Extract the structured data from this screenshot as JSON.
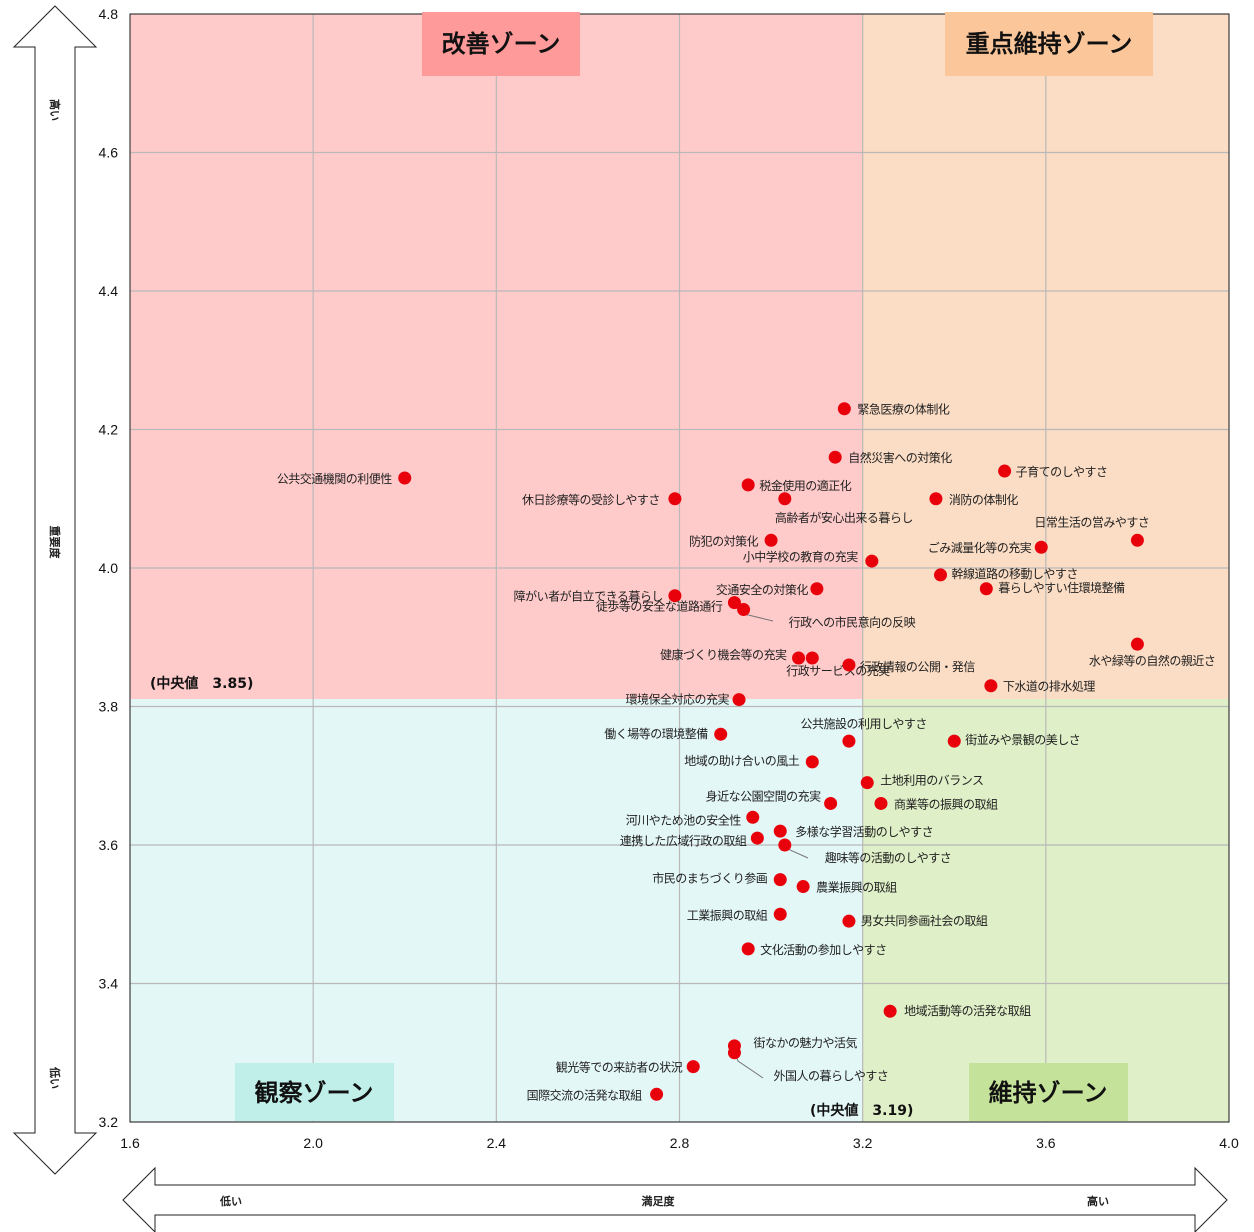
{
  "chart_data": {
    "type": "scatter",
    "xlim": [
      1.6,
      4.0
    ],
    "ylim": [
      3.2,
      4.8
    ],
    "x_ticks": [
      "1.6",
      "2.0",
      "2.4",
      "2.8",
      "3.2",
      "3.6",
      "4.0"
    ],
    "y_ticks": [
      "3.2",
      "3.4",
      "3.6",
      "3.8",
      "4.0",
      "4.2",
      "4.4",
      "4.6",
      "4.8"
    ],
    "grid": true,
    "x_median": 3.19,
    "y_median": 3.85,
    "x_median_label": "(中央値　3.19)",
    "y_median_label": "(中央値　3.85)",
    "xaxis": {
      "low": "低い",
      "label": "満足度",
      "high": "高い"
    },
    "yaxis": {
      "high": "高い",
      "label": "重要度",
      "low": "低い"
    },
    "zones": {
      "top_left": {
        "label": "改善ゾーン",
        "fill": "#ffcaca",
        "label_bg": "#ff9a9a"
      },
      "top_right": {
        "label": "重点維持ゾーン",
        "fill": "#fbdcc4",
        "label_bg": "#fbc79a"
      },
      "bottom_left": {
        "label": "観察ゾーン",
        "fill": "#e3f7f6",
        "label_bg": "#c0efea"
      },
      "bottom_right": {
        "label": "維持ゾーン",
        "fill": "#dfefc7",
        "label_bg": "#c4e29a"
      }
    },
    "point_color": "#e8000b",
    "points": [
      {
        "label": "緊急医療の体制化",
        "x": 3.16,
        "y": 4.23
      },
      {
        "label": "自然災害への対策化",
        "x": 3.14,
        "y": 4.16
      },
      {
        "label": "子育てのしやすさ",
        "x": 3.51,
        "y": 4.14
      },
      {
        "label": "公共交通機関の利便性",
        "x": 2.2,
        "y": 4.13
      },
      {
        "label": "税金使用の適正化",
        "x": 2.95,
        "y": 4.12
      },
      {
        "label": "休日診療等の受診しやすさ",
        "x": 2.79,
        "y": 4.1
      },
      {
        "label": "高齢者が安心出来る暮らし",
        "x": 3.03,
        "y": 4.1
      },
      {
        "label": "消防の体制化",
        "x": 3.36,
        "y": 4.1
      },
      {
        "label": "日常生活の営みやすさ",
        "x": 3.8,
        "y": 4.04
      },
      {
        "label": "防犯の対策化",
        "x": 3.0,
        "y": 4.04
      },
      {
        "label": "ごみ減量化等の充実",
        "x": 3.59,
        "y": 4.03
      },
      {
        "label": "小中学校の教育の充実",
        "x": 3.22,
        "y": 4.01
      },
      {
        "label": "幹線道路の移動しやすさ",
        "x": 3.37,
        "y": 3.99
      },
      {
        "label": "交通安全の対策化",
        "x": 3.1,
        "y": 3.97
      },
      {
        "label": "障がい者が自立できる暮らし",
        "x": 2.79,
        "y": 3.96
      },
      {
        "label": "暮らしやすい住環境整備",
        "x": 3.47,
        "y": 3.97
      },
      {
        "label": "徒歩等の安全な道路通行",
        "x": 2.92,
        "y": 3.95
      },
      {
        "label": "行政への市民意向の反映",
        "x": 2.94,
        "y": 3.94
      },
      {
        "label": "水や緑等の自然の親近さ",
        "x": 3.8,
        "y": 3.89
      },
      {
        "label": "健康づくり機会等の充実",
        "x": 3.06,
        "y": 3.87
      },
      {
        "label": "行政サービスの充実",
        "x": 3.09,
        "y": 3.87
      },
      {
        "label": "行政情報の公開・発信",
        "x": 3.17,
        "y": 3.86
      },
      {
        "label": "下水道の排水処理",
        "x": 3.48,
        "y": 3.83
      },
      {
        "label": "環境保全対応の充実",
        "x": 2.93,
        "y": 3.81
      },
      {
        "label": "働く場等の環境整備",
        "x": 2.89,
        "y": 3.76
      },
      {
        "label": "公共施設の利用しやすさ",
        "x": 3.17,
        "y": 3.75
      },
      {
        "label": "街並みや景観の美しさ",
        "x": 3.4,
        "y": 3.75
      },
      {
        "label": "地域の助け合いの風土",
        "x": 3.09,
        "y": 3.72
      },
      {
        "label": "土地利用のバランス",
        "x": 3.21,
        "y": 3.69
      },
      {
        "label": "身近な公園空間の充実",
        "x": 3.13,
        "y": 3.66
      },
      {
        "label": "商業等の振興の取組",
        "x": 3.24,
        "y": 3.66
      },
      {
        "label": "河川やため池の安全性",
        "x": 2.96,
        "y": 3.64
      },
      {
        "label": "多様な学習活動のしやすさ",
        "x": 3.02,
        "y": 3.62
      },
      {
        "label": "連携した広域行政の取組",
        "x": 2.97,
        "y": 3.61
      },
      {
        "label": "趣味等の活動のしやすさ",
        "x": 3.03,
        "y": 3.6
      },
      {
        "label": "市民のまちづくり参画",
        "x": 3.02,
        "y": 3.55
      },
      {
        "label": "農業振興の取組",
        "x": 3.07,
        "y": 3.54
      },
      {
        "label": "工業振興の取組",
        "x": 3.02,
        "y": 3.5
      },
      {
        "label": "男女共同参画社会の取組",
        "x": 3.17,
        "y": 3.49
      },
      {
        "label": "文化活動の参加しやすさ",
        "x": 2.95,
        "y": 3.45
      },
      {
        "label": "地域活動等の活発な取組",
        "x": 3.26,
        "y": 3.36
      },
      {
        "label": "街なかの魅力や活気",
        "x": 2.92,
        "y": 3.31
      },
      {
        "label": "外国人の暮らしやすさ",
        "x": 2.92,
        "y": 3.3
      },
      {
        "label": "観光等での来訪者の状況",
        "x": 2.83,
        "y": 3.28
      },
      {
        "label": "国際交流の活発な取組",
        "x": 2.75,
        "y": 3.24
      }
    ]
  }
}
